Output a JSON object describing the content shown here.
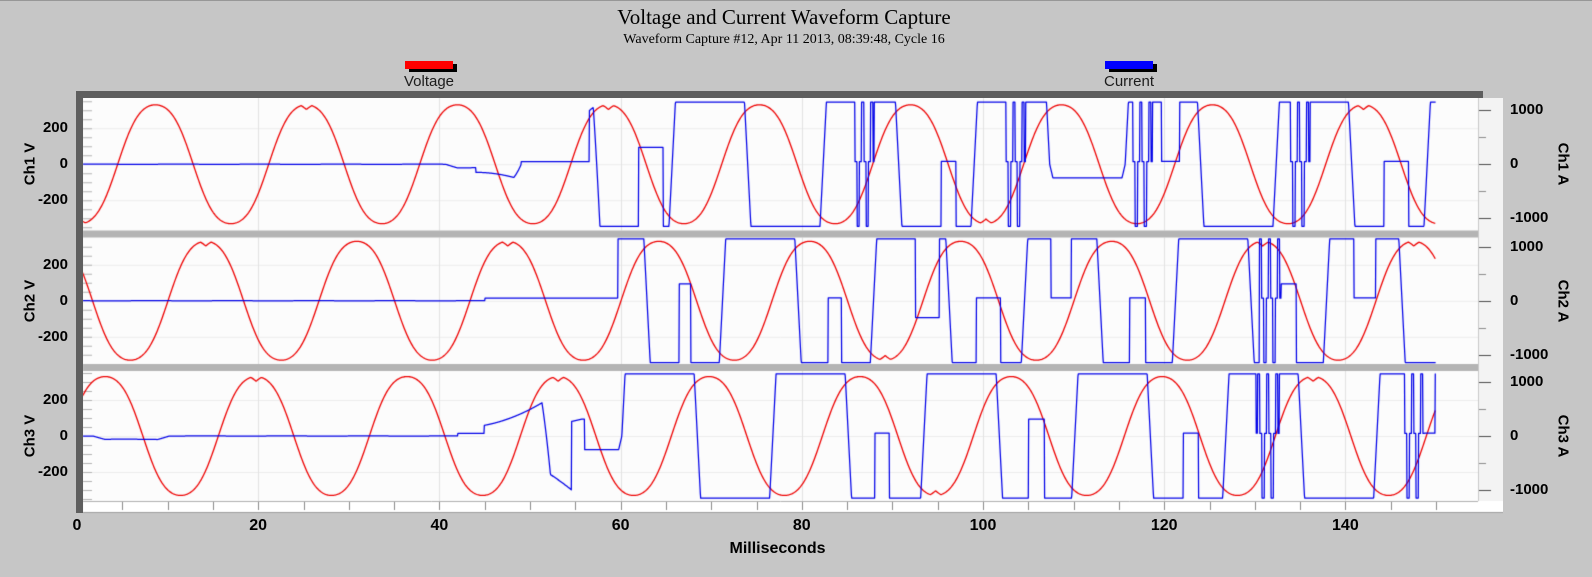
{
  "window": {
    "title": "Voltage and Current Waveform Capture",
    "subtitle": "Waveform Capture #12, Apr 11 2013, 08:39:48,  Cycle 16"
  },
  "legend": {
    "voltage": {
      "label": "Voltage",
      "color": "#ff0000"
    },
    "current": {
      "label": "Current",
      "color": "#0000ff"
    }
  },
  "chart_data": {
    "type": "line",
    "title": "Voltage and Current Waveform Capture",
    "subtitle": "Waveform Capture #12, Apr 11 2013, 08:39:48,  Cycle 16",
    "xlabel": "Milliseconds",
    "x": {
      "min": 0,
      "max": 155,
      "data_end_ms": 150,
      "major_ticks": [
        0,
        20,
        40,
        60,
        80,
        100,
        120,
        140
      ],
      "minor_step_ms": 5
    },
    "frequency_hz": 60,
    "voltage_axis": {
      "units": "V",
      "tick_labels": [
        "200",
        "0",
        "-200"
      ],
      "tick_values": [
        200,
        0,
        -200
      ],
      "minor_step": 50,
      "range": [
        -368,
        368
      ]
    },
    "current_axis": {
      "units": "A",
      "tick_labels": [
        "1000",
        "0",
        "-1000"
      ],
      "tick_values": [
        1000,
        0,
        -1000
      ],
      "minor_step": 500,
      "range": [
        -1226,
        1226
      ]
    },
    "colors": {
      "voltage_line": "#ee0000",
      "current_line": "#0000e8",
      "grid": "#e3e3e3",
      "panel_bg": "#fcfcfc",
      "divider": "#b4b4b4"
    },
    "panels": [
      {
        "name": "Ch1",
        "v_axis_label": "Ch1 V",
        "a_axis_label": "Ch1 A",
        "voltage": {
          "shape": "flat-top-sine",
          "amplitude_v": 332,
          "phase_deg": -97,
          "flat_top": 0.05
        },
        "current": {
          "shape": "chaotic-square",
          "amplitude_a": 1150,
          "phase_deg": 21,
          "onset_ms": 44,
          "square_ms": 58,
          "seed": 3,
          "bursts_ms": [
            86.8,
            103.5,
            117.5,
            134.9
          ]
        }
      },
      {
        "name": "Ch2",
        "v_axis_label": "Ch2 V",
        "a_axis_label": "Ch2 A",
        "voltage": {
          "shape": "flat-top-sine",
          "amplitude_v": 332,
          "phase_deg": 143,
          "flat_top": 0.05
        },
        "current": {
          "shape": "chaotic-square",
          "amplitude_a": 1150,
          "phase_deg": 261,
          "onset_ms": 45,
          "square_ms": 60,
          "seed": 7,
          "bursts_ms": [
            131.7
          ]
        }
      },
      {
        "name": "Ch3",
        "v_axis_label": "Ch3 V",
        "a_axis_label": "Ch3 A",
        "voltage": {
          "shape": "flat-top-sine",
          "amplitude_v": 332,
          "phase_deg": 23,
          "flat_top": 0.05
        },
        "current": {
          "shape": "chaotic-square",
          "amplitude_a": 1150,
          "phase_deg": 141,
          "onset_ms": 42,
          "square_ms": 56,
          "seed": 5,
          "bursts_ms": [
            131.5,
            147.5
          ]
        }
      }
    ]
  }
}
